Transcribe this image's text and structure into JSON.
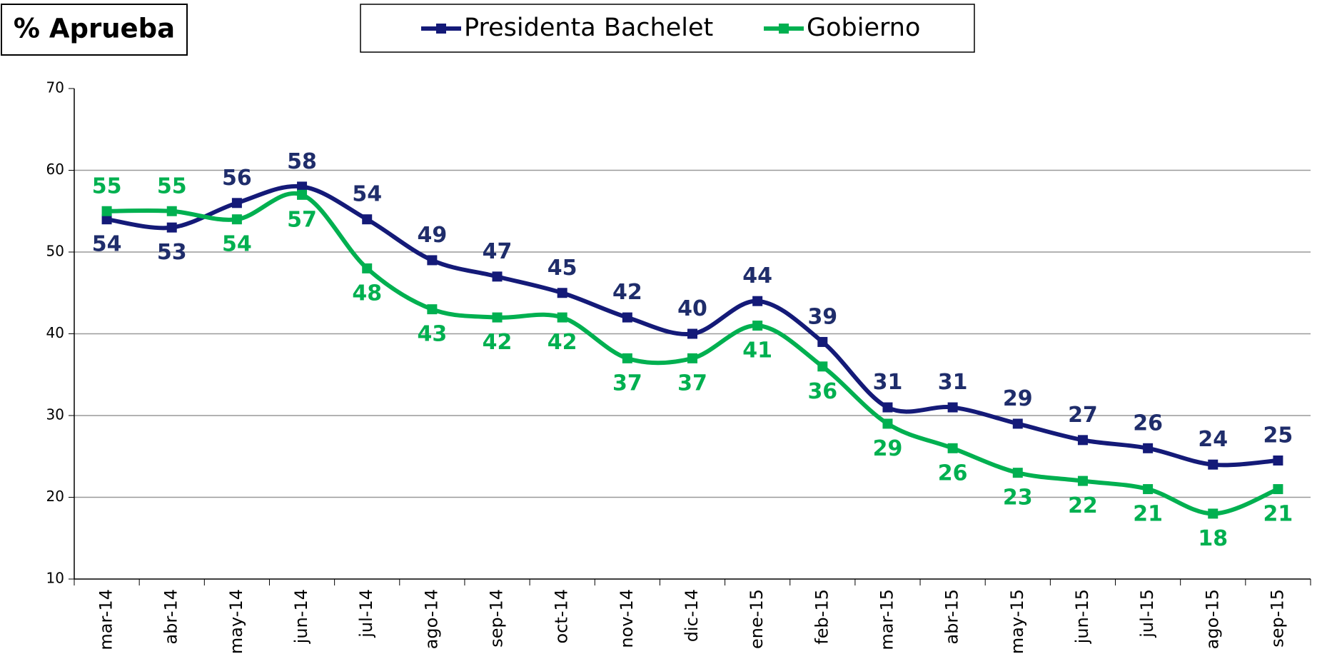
{
  "chart_data": {
    "type": "line",
    "title": "% Aprueba",
    "categories": [
      "mar-14",
      "abr-14",
      "may-14",
      "jun-14",
      "jul-14",
      "ago-14",
      "sep-14",
      "oct-14",
      "nov-14",
      "dic-14",
      "ene-15",
      "feb-15",
      "mar-15",
      "abr-15",
      "may-15",
      "jun-15",
      "jul-15",
      "ago-15",
      "sep-15"
    ],
    "series": [
      {
        "name": "Presidenta Bachelet",
        "color": "#141a78",
        "label_color": "#1f2d6b",
        "values": [
          54,
          53,
          56,
          58,
          54,
          49,
          47,
          45,
          42,
          40,
          44,
          39,
          31,
          31,
          29,
          27,
          26,
          24,
          24.5
        ],
        "value_labels": [
          "54",
          "53",
          "56",
          "58",
          "54",
          "49",
          "47",
          "45",
          "42",
          "40",
          "44",
          "39",
          "31",
          "31",
          "29",
          "27",
          "26",
          "24",
          "25"
        ]
      },
      {
        "name": "Gobierno",
        "color": "#00b050",
        "label_color": "#00b050",
        "values": [
          55,
          55,
          54,
          57,
          48,
          43,
          42,
          42,
          37,
          37,
          41,
          36,
          29,
          26,
          23,
          22,
          21,
          18,
          21
        ]
      }
    ],
    "ylim": [
      10,
      70
    ],
    "yticks": [
      10,
      20,
      30,
      40,
      50,
      60,
      70
    ],
    "grid": true
  }
}
